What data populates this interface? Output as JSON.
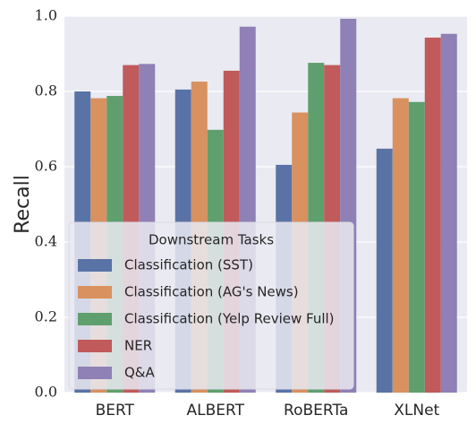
{
  "chart_data": {
    "type": "bar",
    "ylabel": "Recall",
    "xlabel": "",
    "ylim": [
      0,
      1.0
    ],
    "yticks": [
      "0.0",
      "0.2",
      "0.4",
      "0.6",
      "0.8",
      "1.0"
    ],
    "grid": true,
    "categories": [
      "BERT",
      "ALBERT",
      "RoBERTa",
      "XLNet"
    ],
    "legend": {
      "title": "Downstream Tasks",
      "position": "lower-left"
    },
    "series": [
      {
        "name": "Classification (SST)",
        "color": "#5a73a6",
        "values": [
          0.8,
          0.805,
          0.605,
          0.648
        ]
      },
      {
        "name": "Classification (AG's News)",
        "color": "#d8915f",
        "values": [
          0.782,
          0.826,
          0.744,
          0.782
        ]
      },
      {
        "name": "Classification (Yelp Review Full)",
        "color": "#5f9f6e",
        "values": [
          0.788,
          0.698,
          0.876,
          0.772
        ]
      },
      {
        "name": "NER",
        "color": "#c05a5b",
        "values": [
          0.87,
          0.855,
          0.87,
          0.943
        ]
      },
      {
        "name": "Q&A",
        "color": "#8f80b5",
        "values": [
          0.873,
          0.972,
          0.993,
          0.953
        ]
      }
    ]
  }
}
